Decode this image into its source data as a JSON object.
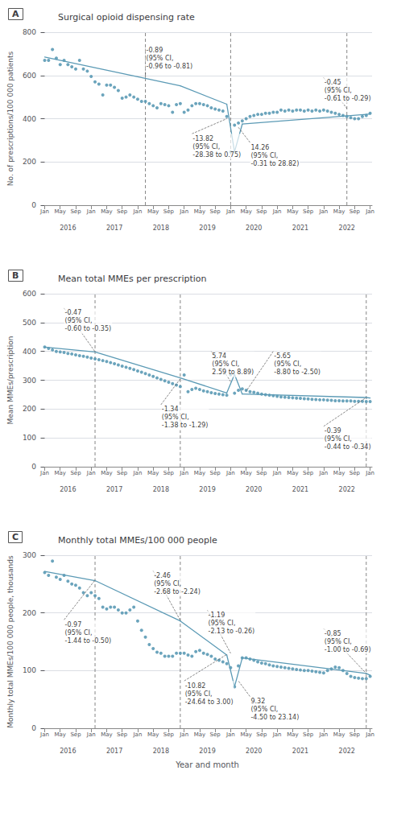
{
  "chart_data": [
    {
      "type": "scatter",
      "letter": "A",
      "title": "Surgical opioid dispensing rate",
      "ylabel": "No. of prescriptions/100 000 patients",
      "color": "#5b9ab5",
      "grid": true,
      "xlim": [
        -0.5,
        84.5
      ],
      "xticks": [
        {
          "value": 0,
          "label": "Jan"
        },
        {
          "value": 4,
          "label": "May"
        },
        {
          "value": 8,
          "label": "Sep"
        },
        {
          "value": 12,
          "label": "Jan"
        },
        {
          "value": 16,
          "label": "May"
        },
        {
          "value": 20,
          "label": "Sep"
        },
        {
          "value": 24,
          "label": "Jan"
        },
        {
          "value": 28,
          "label": "May"
        },
        {
          "value": 32,
          "label": "Sep"
        },
        {
          "value": 36,
          "label": "Jan"
        },
        {
          "value": 40,
          "label": "May"
        },
        {
          "value": 44,
          "label": "Sep"
        },
        {
          "value": 48,
          "label": "Jan"
        },
        {
          "value": 52,
          "label": "May"
        },
        {
          "value": 56,
          "label": "Sep"
        },
        {
          "value": 60,
          "label": "Jan"
        },
        {
          "value": 64,
          "label": "May"
        },
        {
          "value": 68,
          "label": "Sep"
        },
        {
          "value": 72,
          "label": "Jan"
        },
        {
          "value": 76,
          "label": "May"
        },
        {
          "value": 80,
          "label": "Sep"
        },
        {
          "value": 84,
          "label": "Jan"
        }
      ],
      "year_labels": [
        {
          "value": 6,
          "label": "2016"
        },
        {
          "value": 18,
          "label": "2017"
        },
        {
          "value": 30,
          "label": "2018"
        },
        {
          "value": 42,
          "label": "2019"
        },
        {
          "value": 54,
          "label": "2020"
        },
        {
          "value": 66,
          "label": "2021"
        },
        {
          "value": 78,
          "label": "2022"
        }
      ],
      "ylim": [
        0,
        800
      ],
      "yticks": [
        0,
        200,
        400,
        600,
        800
      ],
      "x": [
        0,
        1,
        2,
        3,
        4,
        5,
        6,
        7,
        8,
        9,
        10,
        11,
        12,
        13,
        14,
        15,
        16,
        17,
        18,
        19,
        20,
        21,
        22,
        23,
        24,
        25,
        26,
        27,
        28,
        29,
        30,
        31,
        32,
        33,
        34,
        35,
        36,
        37,
        38,
        39,
        40,
        41,
        42,
        43,
        44,
        45,
        46,
        47,
        48,
        49,
        50,
        51,
        52,
        53,
        54,
        55,
        56,
        57,
        58,
        59,
        60,
        61,
        62,
        63,
        64,
        65,
        66,
        67,
        68,
        69,
        70,
        71,
        72,
        73,
        74,
        75,
        76,
        77,
        78,
        79,
        80,
        81,
        82,
        83,
        84
      ],
      "values": [
        670,
        670,
        720,
        680,
        650,
        670,
        650,
        640,
        630,
        670,
        630,
        620,
        595,
        570,
        560,
        510,
        555,
        555,
        545,
        530,
        495,
        500,
        510,
        500,
        490,
        480,
        480,
        470,
        460,
        450,
        470,
        465,
        460,
        430,
        465,
        470,
        430,
        440,
        460,
        470,
        470,
        465,
        460,
        450,
        445,
        440,
        435,
        410,
        247,
        370,
        380,
        390,
        400,
        410,
        415,
        420,
        420,
        425,
        425,
        430,
        430,
        440,
        435,
        440,
        435,
        440,
        440,
        435,
        440,
        435,
        440,
        435,
        440,
        435,
        430,
        425,
        420,
        415,
        410,
        405,
        400,
        400,
        410,
        415,
        425
      ],
      "trend_segments": [
        {
          "x": [
            0,
            35
          ],
          "y": [
            685,
            552
          ]
        },
        {
          "x": [
            35,
            47
          ],
          "y": [
            552,
            467
          ]
        },
        {
          "x": [
            47,
            49
          ],
          "y": [
            467,
            247
          ]
        },
        {
          "x": [
            49,
            51
          ],
          "y": [
            247,
            375
          ]
        },
        {
          "x": [
            51,
            83
          ],
          "y": [
            375,
            420
          ]
        },
        {
          "x": [
            83,
            84
          ],
          "y": [
            420,
            422
          ]
        }
      ],
      "vlines": [
        26,
        48,
        78
      ],
      "annotations": [
        {
          "text": "-0.89\n(95% CI,\n-0.96 to -0.81)",
          "xt": 26,
          "yt": 740,
          "xa": 26,
          "ya": 588
        },
        {
          "text": "-13.82\n(95% CI,\n-28.38 to 0.75)",
          "xt": 38,
          "yt": 330,
          "xa": 47,
          "ya": 400
        },
        {
          "text": "14.26\n(95% CI,\n-0.31 to 28.82)",
          "xt": 53,
          "yt": 290,
          "xa": 50,
          "ya": 360
        },
        {
          "text": "-0.45\n(95% CI,\n-0.61 to -0.29)",
          "xt": 72,
          "yt": 590,
          "xa": 78,
          "ya": 447
        }
      ]
    },
    {
      "type": "scatter",
      "letter": "B",
      "title": "Mean total MMEs per prescription",
      "ylabel": "Mean MMEs/prescription",
      "color": "#5b9ab5",
      "grid": true,
      "xlim": [
        -0.5,
        84.5
      ],
      "xticks": [
        {
          "value": 0,
          "label": "Jan"
        },
        {
          "value": 4,
          "label": "May"
        },
        {
          "value": 8,
          "label": "Sep"
        },
        {
          "value": 12,
          "label": "Jan"
        },
        {
          "value": 16,
          "label": "May"
        },
        {
          "value": 20,
          "label": "Sep"
        },
        {
          "value": 24,
          "label": "Jan"
        },
        {
          "value": 28,
          "label": "May"
        },
        {
          "value": 32,
          "label": "Sep"
        },
        {
          "value": 36,
          "label": "Jan"
        },
        {
          "value": 40,
          "label": "May"
        },
        {
          "value": 44,
          "label": "Sep"
        },
        {
          "value": 48,
          "label": "Jan"
        },
        {
          "value": 52,
          "label": "May"
        },
        {
          "value": 56,
          "label": "Sep"
        },
        {
          "value": 60,
          "label": "Jan"
        },
        {
          "value": 64,
          "label": "May"
        },
        {
          "value": 68,
          "label": "Sep"
        },
        {
          "value": 72,
          "label": "Jan"
        },
        {
          "value": 76,
          "label": "May"
        },
        {
          "value": 80,
          "label": "Sep"
        },
        {
          "value": 84,
          "label": "Jan"
        }
      ],
      "year_labels": [
        {
          "value": 6,
          "label": "2016"
        },
        {
          "value": 18,
          "label": "2017"
        },
        {
          "value": 30,
          "label": "2018"
        },
        {
          "value": 42,
          "label": "2019"
        },
        {
          "value": 54,
          "label": "2020"
        },
        {
          "value": 66,
          "label": "2021"
        },
        {
          "value": 78,
          "label": "2022"
        }
      ],
      "ylim": [
        0,
        600
      ],
      "yticks": [
        0,
        100,
        200,
        300,
        400,
        500,
        600
      ],
      "x": [
        0,
        1,
        2,
        3,
        4,
        5,
        6,
        7,
        8,
        9,
        10,
        11,
        12,
        13,
        14,
        15,
        16,
        17,
        18,
        19,
        20,
        21,
        22,
        23,
        24,
        25,
        26,
        27,
        28,
        29,
        30,
        31,
        32,
        33,
        34,
        35,
        36,
        37,
        38,
        39,
        40,
        41,
        42,
        43,
        44,
        45,
        46,
        47,
        48,
        49,
        50,
        51,
        52,
        53,
        54,
        55,
        56,
        57,
        58,
        59,
        60,
        61,
        62,
        63,
        64,
        65,
        66,
        67,
        68,
        69,
        70,
        71,
        72,
        73,
        74,
        75,
        76,
        77,
        78,
        79,
        80,
        81,
        82,
        83,
        84
      ],
      "values": [
        415,
        410,
        405,
        400,
        398,
        396,
        393,
        391,
        388,
        385,
        383,
        380,
        377,
        374,
        371,
        368,
        365,
        361,
        357,
        353,
        349,
        345,
        341,
        337,
        332,
        328,
        323,
        318,
        313,
        308,
        303,
        298,
        293,
        288,
        283,
        278,
        318,
        260,
        268,
        272,
        268,
        263,
        260,
        257,
        254,
        252,
        250,
        248,
        319,
        255,
        265,
        270,
        265,
        260,
        258,
        255,
        252,
        250,
        248,
        246,
        244,
        242,
        241,
        240,
        239,
        238,
        237,
        236,
        235,
        234,
        233,
        232,
        232,
        231,
        230,
        229,
        229,
        228,
        228,
        228,
        227,
        227,
        227,
        226,
        226
      ],
      "trend_segments": [
        {
          "x": [
            0,
            13
          ],
          "y": [
            415,
            398
          ]
        },
        {
          "x": [
            13,
            35
          ],
          "y": [
            398,
            308
          ]
        },
        {
          "x": [
            35,
            47
          ],
          "y": [
            308,
            256
          ]
        },
        {
          "x": [
            47,
            49
          ],
          "y": [
            256,
            320
          ]
        },
        {
          "x": [
            49,
            51
          ],
          "y": [
            320,
            252
          ]
        },
        {
          "x": [
            51,
            83
          ],
          "y": [
            252,
            240
          ]
        },
        {
          "x": [
            83,
            84
          ],
          "y": [
            240,
            238
          ]
        }
      ],
      "vlines": [
        13,
        35,
        83
      ],
      "annotations": [
        {
          "text": "-0.47\n(95% CI,\n-0.60 to -0.35)",
          "xt": 5,
          "yt": 550,
          "xa": 13,
          "ya": 399
        },
        {
          "text": "-1.34\n(95% CI,\n-1.38 to -1.29)",
          "xt": 30,
          "yt": 215,
          "xa": 35,
          "ya": 305
        },
        {
          "text": "5.74\n(95% CI,\n2.59 to 8.89)",
          "xt": 43,
          "yt": 400,
          "xa": 48,
          "ya": 295
        },
        {
          "text": "-5.65\n(95% CI,\n-8.80 to -2.50)",
          "xt": 59,
          "yt": 400,
          "xa": 52,
          "ya": 262
        },
        {
          "text": "-0.39\n(95% CI,\n-0.44 to -0.34)",
          "xt": 72,
          "yt": 140,
          "xa": 83,
          "ya": 240
        }
      ]
    },
    {
      "type": "scatter",
      "letter": "C",
      "title": "Monthly total MMEs/100 000 people",
      "ylabel": "Monthly total MMEs/100 000 people, thousands",
      "xlabel": "Year and month",
      "color": "#5b9ab5",
      "grid": true,
      "xlim": [
        -0.5,
        84.5
      ],
      "xticks": [
        {
          "value": 0,
          "label": "Jan"
        },
        {
          "value": 4,
          "label": "May"
        },
        {
          "value": 8,
          "label": "Sep"
        },
        {
          "value": 12,
          "label": "Jan"
        },
        {
          "value": 16,
          "label": "May"
        },
        {
          "value": 20,
          "label": "Sep"
        },
        {
          "value": 24,
          "label": "Jan"
        },
        {
          "value": 28,
          "label": "May"
        },
        {
          "value": 32,
          "label": "Sep"
        },
        {
          "value": 36,
          "label": "Jan"
        },
        {
          "value": 40,
          "label": "May"
        },
        {
          "value": 44,
          "label": "Sep"
        },
        {
          "value": 48,
          "label": "Jan"
        },
        {
          "value": 52,
          "label": "May"
        },
        {
          "value": 56,
          "label": "Sep"
        },
        {
          "value": 60,
          "label": "Jan"
        },
        {
          "value": 64,
          "label": "May"
        },
        {
          "value": 68,
          "label": "Sep"
        },
        {
          "value": 72,
          "label": "Jan"
        },
        {
          "value": 76,
          "label": "May"
        },
        {
          "value": 80,
          "label": "Sep"
        },
        {
          "value": 84,
          "label": "Jan"
        }
      ],
      "year_labels": [
        {
          "value": 6,
          "label": "2016"
        },
        {
          "value": 18,
          "label": "2017"
        },
        {
          "value": 30,
          "label": "2018"
        },
        {
          "value": 42,
          "label": "2019"
        },
        {
          "value": 54,
          "label": "2020"
        },
        {
          "value": 66,
          "label": "2021"
        },
        {
          "value": 78,
          "label": "2022"
        }
      ],
      "ylim": [
        0,
        300
      ],
      "yticks": [
        0,
        100,
        200,
        300
      ],
      "x": [
        0,
        1,
        2,
        3,
        4,
        5,
        6,
        7,
        8,
        9,
        10,
        11,
        12,
        13,
        14,
        15,
        16,
        17,
        18,
        19,
        20,
        21,
        22,
        23,
        24,
        25,
        26,
        27,
        28,
        29,
        30,
        31,
        32,
        33,
        34,
        35,
        36,
        37,
        38,
        39,
        40,
        41,
        42,
        43,
        44,
        45,
        46,
        47,
        48,
        49,
        50,
        51,
        52,
        53,
        54,
        55,
        56,
        57,
        58,
        59,
        60,
        61,
        62,
        63,
        64,
        65,
        66,
        67,
        68,
        69,
        70,
        71,
        72,
        73,
        74,
        75,
        76,
        77,
        78,
        79,
        80,
        81,
        82,
        83,
        84
      ],
      "values": [
        270,
        265,
        290,
        262,
        258,
        265,
        255,
        250,
        248,
        243,
        235,
        230,
        235,
        230,
        225,
        210,
        207,
        210,
        210,
        205,
        200,
        200,
        205,
        210,
        186,
        170,
        158,
        145,
        138,
        132,
        130,
        125,
        125,
        125,
        130,
        130,
        130,
        127,
        125,
        133,
        135,
        130,
        128,
        125,
        120,
        118,
        115,
        112,
        105,
        72,
        108,
        122,
        122,
        120,
        118,
        115,
        113,
        112,
        110,
        108,
        107,
        106,
        105,
        104,
        103,
        102,
        101,
        100,
        100,
        99,
        98,
        97,
        96,
        100,
        103,
        106,
        105,
        100,
        95,
        90,
        88,
        87,
        86,
        86,
        90
      ],
      "trend_segments": [
        {
          "x": [
            0,
            13
          ],
          "y": [
            272,
            256
          ]
        },
        {
          "x": [
            13,
            35
          ],
          "y": [
            256,
            186
          ]
        },
        {
          "x": [
            35,
            47
          ],
          "y": [
            186,
            127
          ]
        },
        {
          "x": [
            47,
            49
          ],
          "y": [
            127,
            72
          ]
        },
        {
          "x": [
            49,
            51
          ],
          "y": [
            72,
            122
          ]
        },
        {
          "x": [
            51,
            83
          ],
          "y": [
            122,
            95
          ]
        },
        {
          "x": [
            83,
            84
          ],
          "y": [
            95,
            92
          ]
        }
      ],
      "vlines": [
        13,
        35,
        83
      ],
      "annotations": [
        {
          "text": "-0.97\n(95% CI,\n-1.44 to -0.50)",
          "xt": 5,
          "yt": 188,
          "xa": 13,
          "ya": 257
        },
        {
          "text": "-2.46\n(95% CI,\n-2.68 to -2.24)",
          "xt": 28,
          "yt": 273,
          "xa": 35,
          "ya": 187
        },
        {
          "text": "-10.82\n(95% CI,\n-24.64 to 3.00)",
          "xt": 36,
          "yt": 82,
          "xa": 47,
          "ya": 128
        },
        {
          "text": "-1.19\n(95% CI,\n-2.13 to -0.26)",
          "xt": 42,
          "yt": 205,
          "xa": 48,
          "ya": 130
        },
        {
          "text": "9.32\n(95% CI,\n-4.50 to 23.14)",
          "xt": 53,
          "yt": 55,
          "xa": 50,
          "ya": 82
        },
        {
          "text": "-0.85\n(95% CI,\n-1.00 to -0.69)",
          "xt": 72,
          "yt": 173,
          "xa": 83,
          "ya": 95
        }
      ]
    }
  ]
}
